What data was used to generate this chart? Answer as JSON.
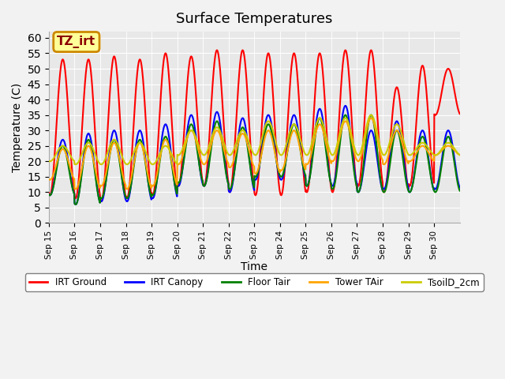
{
  "title": "Surface Temperatures",
  "xlabel": "Time",
  "ylabel": "Temperature (C)",
  "ylim": [
    0,
    62
  ],
  "yticks": [
    0,
    5,
    10,
    15,
    20,
    25,
    30,
    35,
    40,
    45,
    50,
    55,
    60
  ],
  "bg_color": "#e8e8e8",
  "fig_bg": "#f2f2f2",
  "annotation_text": "TZ_irt",
  "annotation_bg": "#ffff99",
  "annotation_border": "#cc8800",
  "series": {
    "IRT Ground": {
      "color": "red",
      "lw": 1.5,
      "peaks": [
        53,
        53,
        54,
        53,
        55,
        54,
        56,
        56,
        55,
        55,
        55,
        56,
        56,
        44,
        51,
        50
      ],
      "mins": [
        9,
        8,
        7,
        8,
        9,
        12,
        12,
        10,
        9,
        9,
        10,
        10,
        12,
        10,
        12,
        35
      ]
    },
    "IRT Canopy": {
      "color": "blue",
      "lw": 1.5,
      "peaks": [
        27,
        29,
        30,
        30,
        32,
        35,
        36,
        34,
        35,
        35,
        37,
        38,
        30,
        33,
        30,
        30
      ],
      "mins": [
        9,
        6,
        7,
        7,
        8,
        12,
        12,
        10,
        14,
        14,
        12,
        12,
        10,
        11,
        10,
        11
      ]
    },
    "Floor Tair": {
      "color": "green",
      "lw": 1.5,
      "peaks": [
        25,
        27,
        27,
        27,
        28,
        32,
        33,
        31,
        32,
        32,
        34,
        35,
        35,
        30,
        28,
        28
      ],
      "mins": [
        9,
        6,
        8,
        8,
        9,
        13,
        12,
        11,
        15,
        15,
        12,
        11,
        10,
        10,
        10,
        10
      ]
    },
    "Tower TAir": {
      "color": "orange",
      "lw": 1.5,
      "peaks": [
        24,
        25,
        26,
        26,
        27,
        30,
        30,
        29,
        30,
        30,
        32,
        33,
        34,
        30,
        25,
        25
      ],
      "mins": [
        14,
        11,
        12,
        11,
        12,
        19,
        19,
        18,
        16,
        17,
        19,
        20,
        20,
        19,
        20,
        22
      ]
    },
    "TsoilD_2cm": {
      "color": "#cccc00",
      "lw": 1.5,
      "peaks": [
        25,
        26,
        27,
        26,
        25,
        30,
        31,
        30,
        33,
        32,
        34,
        34,
        35,
        32,
        26,
        26
      ],
      "mins": [
        20,
        19,
        19,
        19,
        19,
        22,
        22,
        22,
        22,
        22,
        22,
        22,
        22,
        22,
        22,
        22
      ]
    }
  },
  "xtick_labels": [
    "Sep 15",
    "Sep 16",
    "Sep 17",
    "Sep 18",
    "Sep 19",
    "Sep 20",
    "Sep 21",
    "Sep 22",
    "Sep 23",
    "Sep 24",
    "Sep 25",
    "Sep 26",
    "Sep 27",
    "Sep 28",
    "Sep 29",
    "Sep 30"
  ],
  "n_days": 16
}
